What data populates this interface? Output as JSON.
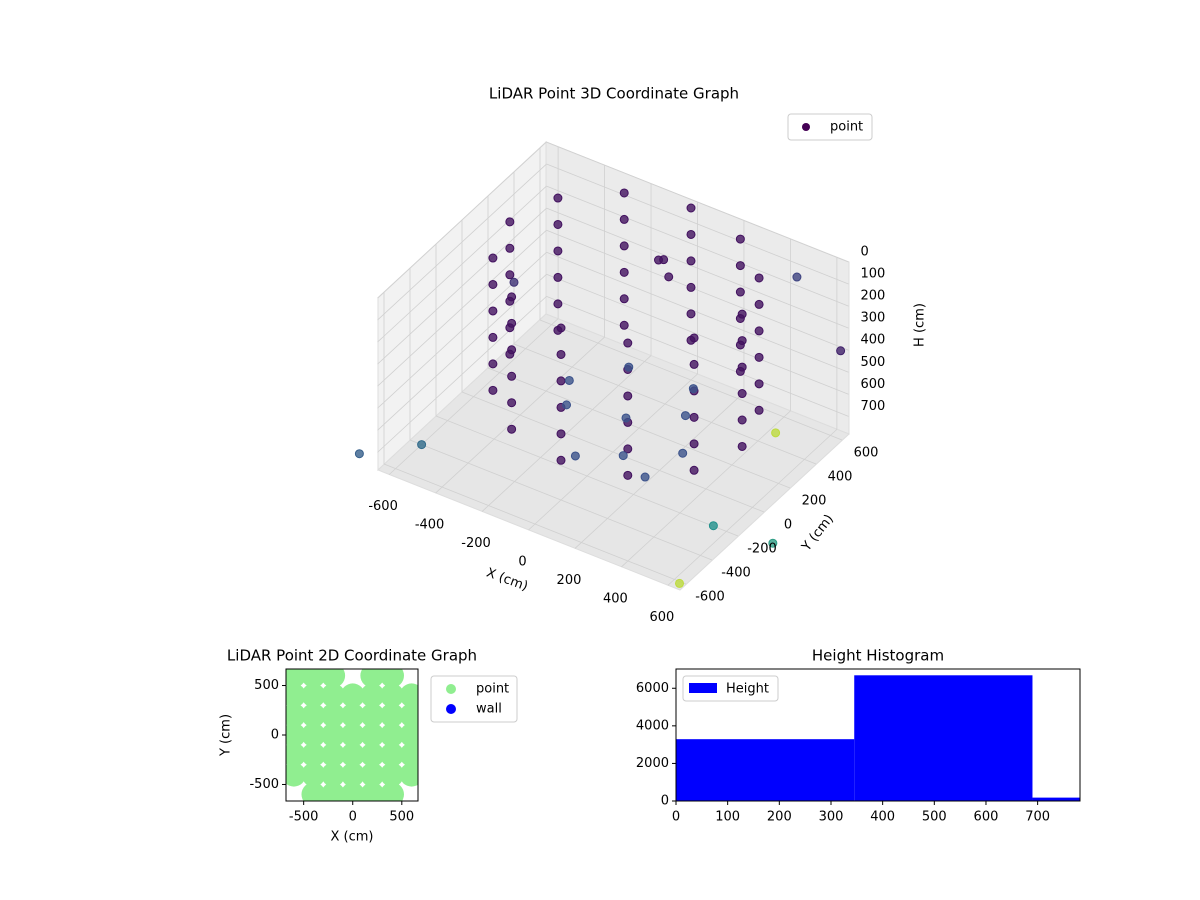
{
  "chart_data": [
    {
      "type": "scatter3d",
      "title": "LiDAR Point 3D Coordinate Graph",
      "xlabel": "X (cm)",
      "ylabel": "Y (cm)",
      "zlabel": "H (cm)",
      "xlim": [
        -650,
        650
      ],
      "ylim": [
        -650,
        650
      ],
      "zlim": [
        0,
        780
      ],
      "z_inverted": true,
      "xticks": [
        -600,
        -400,
        -200,
        0,
        200,
        400,
        600
      ],
      "yticks": [
        -600,
        -400,
        -200,
        0,
        200,
        400,
        600
      ],
      "zticks": [
        0,
        100,
        200,
        300,
        400,
        500,
        600,
        700
      ],
      "grid": true,
      "legend": "upper right",
      "cmap": "viridis",
      "clim": [
        0,
        1
      ],
      "series": [
        {
          "name": "point",
          "color": "#440154",
          "x": [
            500,
            433,
            250,
            0,
            -250,
            -433,
            -500,
            -433,
            -250,
            0,
            250,
            433,
            500,
            433,
            250,
            0,
            -250,
            -433,
            -500,
            -433,
            -250,
            0,
            250,
            433,
            500,
            433,
            250,
            0,
            -250,
            -433,
            -500,
            -433,
            -250,
            0,
            250,
            433,
            500,
            433,
            250,
            0,
            -250,
            -433,
            -500,
            -433,
            -250,
            0,
            250,
            433,
            500,
            433,
            250,
            0,
            -250,
            -433,
            -500,
            -433,
            -250,
            0,
            250,
            433,
            500,
            433,
            250,
            0,
            -250,
            -433,
            -500,
            -433,
            -250,
            0,
            250,
            433,
            -200,
            0,
            200,
            -100,
            100,
            300,
            -300,
            150,
            -50,
            250,
            50,
            0,
            100,
            -700,
            650,
            700,
            600,
            -650,
            700,
            400,
            -600,
            800
          ],
          "y": [
            100,
            350,
            533,
            600,
            533,
            350,
            100,
            -150,
            -333,
            -400,
            -333,
            -150,
            100,
            350,
            533,
            600,
            533,
            350,
            100,
            -150,
            -333,
            -400,
            -333,
            -150,
            100,
            350,
            533,
            600,
            533,
            350,
            100,
            -150,
            -333,
            -400,
            -333,
            -150,
            100,
            350,
            533,
            600,
            533,
            350,
            100,
            -150,
            -333,
            -400,
            -333,
            -150,
            100,
            350,
            533,
            600,
            533,
            350,
            100,
            -150,
            -333,
            -400,
            -333,
            -150,
            100,
            350,
            533,
            600,
            533,
            350,
            100,
            -150,
            -333,
            -400,
            -333,
            -150,
            0,
            100,
            200,
            300,
            -100,
            0,
            200,
            350,
            -200,
            -200,
            300,
            350,
            250,
            -700,
            -650,
            0,
            -300,
            400,
            500,
            700,
            -400,
            -200
          ],
          "z": [
            0,
            0,
            0,
            0,
            0,
            0,
            0,
            0,
            0,
            0,
            0,
            0,
            120,
            120,
            120,
            120,
            120,
            120,
            120,
            120,
            120,
            120,
            120,
            120,
            240,
            240,
            240,
            240,
            240,
            240,
            240,
            240,
            240,
            240,
            240,
            240,
            360,
            360,
            360,
            360,
            360,
            360,
            360,
            360,
            360,
            360,
            360,
            360,
            480,
            480,
            480,
            480,
            480,
            480,
            480,
            480,
            480,
            480,
            480,
            480,
            600,
            600,
            600,
            600,
            600,
            600,
            600,
            600,
            600,
            600,
            600,
            600,
            650,
            680,
            640,
            600,
            700,
            660,
            690,
            620,
            710,
            680,
            50,
            100,
            80,
            700,
            750,
            400,
            700,
            500,
            300,
            200,
            780,
            750
          ],
          "c": [
            0.05,
            0.05,
            0.05,
            0.05,
            0.05,
            0.05,
            0.05,
            0.05,
            0.05,
            0.05,
            0.05,
            0.05,
            0.05,
            0.05,
            0.05,
            0.05,
            0.05,
            0.05,
            0.05,
            0.05,
            0.05,
            0.05,
            0.05,
            0.05,
            0.05,
            0.05,
            0.05,
            0.05,
            0.05,
            0.05,
            0.05,
            0.05,
            0.05,
            0.05,
            0.05,
            0.05,
            0.05,
            0.05,
            0.05,
            0.05,
            0.05,
            0.05,
            0.05,
            0.05,
            0.05,
            0.05,
            0.05,
            0.05,
            0.05,
            0.05,
            0.05,
            0.05,
            0.05,
            0.05,
            0.05,
            0.05,
            0.05,
            0.05,
            0.05,
            0.05,
            0.05,
            0.05,
            0.05,
            0.05,
            0.05,
            0.05,
            0.05,
            0.05,
            0.05,
            0.05,
            0.05,
            0.05,
            0.25,
            0.25,
            0.25,
            0.25,
            0.25,
            0.25,
            0.25,
            0.25,
            0.25,
            0.25,
            0.05,
            0.05,
            0.05,
            0.3,
            0.9,
            0.9,
            0.5,
            0.15,
            0.1,
            0.2,
            0.35,
            0.55
          ]
        }
      ]
    },
    {
      "type": "scatter",
      "title": "LiDAR Point 2D Coordinate Graph",
      "xlabel": "X (cm)",
      "ylabel": "Y (cm)",
      "xlim": [
        -680,
        665
      ],
      "ylim": [
        -667,
        667
      ],
      "xticks": [
        -500,
        0,
        500
      ],
      "yticks": [
        -500,
        0,
        500
      ],
      "legend": "outside right",
      "series": [
        {
          "name": "point",
          "color": "#90ee90",
          "x": [
            -600,
            -400,
            -200,
            200,
            400,
            -600,
            -400,
            -200,
            0,
            200,
            400,
            600,
            -600,
            -400,
            -200,
            0,
            200,
            400,
            600,
            -600,
            -400,
            -200,
            0,
            200,
            400,
            600,
            -600,
            -400,
            -200,
            0,
            200,
            400,
            600,
            -600,
            -400,
            -200,
            0,
            200,
            400,
            600,
            -400,
            -200,
            0,
            200,
            400
          ],
          "y": [
            600,
            600,
            600,
            600,
            600,
            400,
            400,
            400,
            400,
            400,
            400,
            400,
            200,
            200,
            200,
            200,
            200,
            200,
            200,
            0,
            0,
            0,
            0,
            0,
            0,
            0,
            -200,
            -200,
            -200,
            -200,
            -200,
            -200,
            -200,
            -400,
            -400,
            -400,
            -400,
            -400,
            -400,
            -400,
            -600,
            -600,
            -600,
            -600,
            -600
          ]
        },
        {
          "name": "wall",
          "color": "#0000ff",
          "x": [],
          "y": []
        }
      ]
    },
    {
      "type": "histogram",
      "title": "Height Histogram",
      "name": "Height",
      "color": "#0000ff",
      "bins": [
        0,
        345,
        690,
        782
      ],
      "counts": [
        3290,
        6690,
        180
      ],
      "xlim": [
        0,
        782
      ],
      "ylim": [
        0,
        7025
      ],
      "xticks": [
        0,
        100,
        200,
        300,
        400,
        500,
        600,
        700
      ],
      "yticks": [
        0,
        2000,
        4000,
        6000
      ],
      "legend": "upper left"
    }
  ]
}
